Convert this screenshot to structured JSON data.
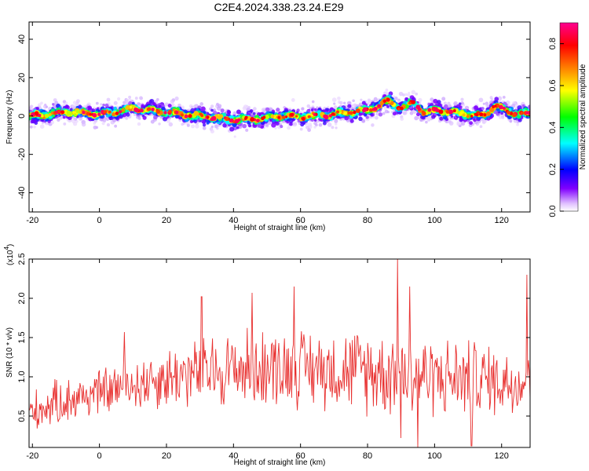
{
  "title": "C2E4.2024.338.23.24.E29",
  "chart_data": [
    {
      "type": "heatmap",
      "xlabel": "Height of straight line (km)",
      "ylabel": "Frequency (Hz)",
      "xlim": [
        -21,
        128.5
      ],
      "ylim": [
        -50,
        49
      ],
      "xticks": [
        -20,
        0,
        20,
        40,
        60,
        80,
        100,
        120
      ],
      "yticks": [
        -40,
        -20,
        0,
        20,
        40
      ],
      "colorbar": {
        "label": "Normalized spectral amplitude",
        "range": [
          0,
          0.9
        ],
        "ticks": [
          0.0,
          0.2,
          0.4,
          0.6,
          0.8
        ],
        "colors": [
          "#ffffff",
          "#8000ff",
          "#0000ff",
          "#00ffff",
          "#00ff00",
          "#ffff00",
          "#ff8000",
          "#ff0000",
          "#ff0090"
        ]
      },
      "ridge": {
        "x": [
          -20,
          -15,
          -10,
          -5,
          0,
          5,
          10,
          15,
          20,
          25,
          30,
          35,
          40,
          45,
          50,
          55,
          60,
          65,
          70,
          75,
          80,
          83,
          86,
          90,
          94,
          97,
          100,
          105,
          110,
          115,
          118,
          122,
          128
        ],
        "y": [
          0,
          1,
          2,
          1.5,
          1,
          2,
          4,
          3,
          2,
          1,
          0,
          -1,
          -2,
          -1.5,
          -1,
          0,
          -0.5,
          0,
          1,
          2,
          3,
          5,
          8,
          4,
          7,
          2,
          3,
          2,
          1,
          0,
          6,
          2,
          1
        ]
      }
    },
    {
      "type": "line",
      "xlabel": "Height of straight line (km)",
      "ylabel": "SNR (10 * v/v)",
      "multiplier_label": "(x10",
      "multiplier_exp": "4",
      "xlim": [
        -21,
        128.5
      ],
      "ylim": [
        0.1,
        2.5
      ],
      "xticks": [
        -20,
        0,
        20,
        40,
        60,
        80,
        100,
        120
      ],
      "yticks": [
        0.5,
        1.0,
        1.5,
        2.0,
        2.5
      ],
      "ytick_labels": [
        "0.5",
        "1.0",
        "1.5",
        "2.0",
        "2.5"
      ],
      "color": "#e8302f",
      "trend": {
        "x": [
          -21,
          -10,
          0,
          10,
          20,
          30,
          40,
          50,
          60,
          70,
          80,
          90,
          100,
          110,
          120,
          128.5
        ],
        "mean": [
          0.55,
          0.7,
          0.8,
          0.9,
          1.0,
          1.05,
          1.1,
          1.12,
          1.12,
          1.1,
          1.08,
          1.05,
          1.0,
          0.98,
          0.95,
          0.95
        ],
        "spread": [
          0.25,
          0.3,
          0.3,
          0.35,
          0.4,
          0.45,
          0.5,
          0.5,
          0.5,
          0.5,
          0.55,
          0.55,
          0.5,
          0.5,
          0.45,
          0.45
        ]
      },
      "peaks": [
        {
          "x": 7.5,
          "y": 1.57
        },
        {
          "x": 30.5,
          "y": 2.02
        },
        {
          "x": 45.5,
          "y": 2.07
        },
        {
          "x": 58,
          "y": 2.15
        },
        {
          "x": 89,
          "y": 2.5
        },
        {
          "x": 92.5,
          "y": 2.15
        },
        {
          "x": 127.5,
          "y": 2.3
        }
      ],
      "troughs": [
        {
          "x": 95,
          "y": 0.1
        },
        {
          "x": 111,
          "y": 0.12
        },
        {
          "x": 90,
          "y": 0.22
        }
      ]
    }
  ]
}
